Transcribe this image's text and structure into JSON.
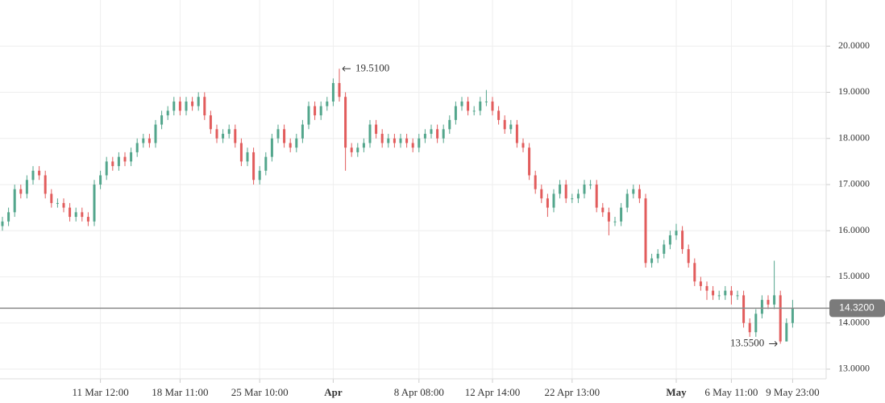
{
  "chart_data": {
    "type": "candlestick",
    "categories": [
      null,
      null,
      null,
      null,
      null,
      null,
      null,
      null,
      null,
      null,
      null,
      null,
      null,
      null,
      null,
      null,
      "11 Mar 12:00",
      null,
      null,
      null,
      null,
      null,
      null,
      null,
      null,
      null,
      null,
      null,
      null,
      "18 Mar 11:00",
      null,
      null,
      null,
      null,
      null,
      null,
      null,
      null,
      null,
      null,
      null,
      null,
      "25 Mar 10:00",
      null,
      null,
      null,
      null,
      null,
      null,
      null,
      null,
      null,
      null,
      null,
      "Apr",
      null,
      null,
      null,
      null,
      null,
      null,
      null,
      null,
      null,
      null,
      null,
      null,
      null,
      "8 Apr 08:00",
      null,
      null,
      null,
      null,
      null,
      null,
      null,
      null,
      null,
      null,
      null,
      "12 Apr 14:00",
      null,
      null,
      null,
      null,
      null,
      null,
      null,
      null,
      null,
      null,
      null,
      null,
      "22 Apr 13:00",
      null,
      null,
      null,
      null,
      null,
      null,
      null,
      null,
      null,
      null,
      null,
      null,
      null,
      null,
      null,
      null,
      "May",
      null,
      null,
      null,
      null,
      null,
      null,
      null,
      null,
      "6 May 11:00",
      null,
      null,
      null,
      null,
      null,
      null,
      null,
      null,
      null,
      "9 May 23:00"
    ],
    "bold_categories": [
      "Apr",
      "May"
    ],
    "open": [
      16.1,
      16.2,
      16.4,
      16.9,
      16.8,
      17.1,
      17.3,
      17.2,
      16.8,
      16.6,
      16.6,
      16.5,
      16.3,
      16.4,
      16.3,
      16.2,
      17.0,
      17.2,
      17.5,
      17.4,
      17.6,
      17.5,
      17.7,
      17.9,
      18.0,
      17.9,
      18.3,
      18.5,
      18.6,
      18.8,
      18.6,
      18.8,
      18.7,
      18.9,
      18.5,
      18.2,
      18.0,
      18.1,
      18.2,
      17.9,
      17.5,
      17.7,
      17.1,
      17.3,
      17.6,
      18.0,
      18.2,
      17.9,
      17.8,
      18.0,
      18.3,
      18.7,
      18.5,
      18.7,
      18.8,
      19.2,
      18.9,
      17.8,
      17.7,
      17.8,
      17.9,
      18.3,
      18.1,
      17.9,
      18.0,
      17.9,
      18.0,
      17.9,
      17.8,
      18.0,
      18.1,
      18.2,
      18.0,
      18.2,
      18.4,
      18.7,
      18.8,
      18.6,
      18.6,
      18.8,
      18.8,
      18.6,
      18.4,
      18.2,
      18.3,
      17.9,
      17.8,
      17.2,
      16.9,
      16.7,
      16.5,
      16.8,
      17.0,
      16.7,
      16.7,
      16.8,
      17.0,
      17.0,
      16.5,
      16.4,
      16.2,
      16.2,
      16.5,
      16.8,
      16.9,
      16.7,
      15.3,
      15.4,
      15.5,
      15.7,
      15.9,
      16.0,
      15.6,
      15.3,
      14.9,
      14.8,
      14.7,
      14.6,
      14.6,
      14.7,
      14.6,
      14.6,
      14.0,
      13.8,
      14.2,
      14.5,
      14.4,
      14.6,
      13.6,
      14.0
    ],
    "high": [
      16.3,
      16.5,
      17.0,
      17.0,
      17.2,
      17.4,
      17.4,
      17.3,
      16.9,
      16.7,
      16.7,
      16.6,
      16.5,
      16.5,
      16.4,
      17.1,
      17.3,
      17.6,
      17.6,
      17.7,
      17.7,
      17.8,
      18.0,
      18.1,
      18.1,
      18.4,
      18.6,
      18.7,
      18.9,
      18.9,
      18.9,
      18.9,
      19.0,
      19.0,
      18.6,
      18.3,
      18.2,
      18.3,
      18.3,
      18.0,
      17.8,
      17.8,
      17.4,
      17.7,
      18.1,
      18.3,
      18.3,
      18.0,
      18.1,
      18.4,
      18.8,
      18.8,
      18.8,
      18.9,
      19.3,
      19.51,
      19.0,
      17.9,
      17.9,
      18.0,
      18.4,
      18.4,
      18.2,
      18.1,
      18.1,
      18.1,
      18.1,
      18.0,
      18.1,
      18.2,
      18.3,
      18.3,
      18.3,
      18.5,
      18.8,
      18.9,
      18.9,
      18.7,
      18.9,
      19.05,
      18.9,
      18.7,
      18.5,
      18.4,
      18.4,
      18.0,
      17.9,
      17.3,
      17.0,
      16.8,
      16.9,
      17.1,
      17.1,
      16.8,
      16.9,
      17.1,
      17.1,
      17.1,
      16.6,
      16.5,
      16.3,
      16.6,
      16.9,
      17.0,
      17.0,
      16.8,
      15.5,
      15.6,
      15.8,
      16.0,
      16.15,
      16.1,
      15.7,
      15.4,
      15.0,
      14.9,
      14.8,
      14.7,
      14.8,
      14.8,
      14.7,
      14.7,
      14.1,
      14.3,
      14.6,
      14.6,
      15.35,
      14.7,
      14.1,
      14.5
    ],
    "low": [
      16.0,
      16.1,
      16.3,
      16.7,
      16.7,
      17.0,
      17.1,
      16.7,
      16.5,
      16.5,
      16.4,
      16.2,
      16.2,
      16.2,
      16.1,
      16.1,
      16.9,
      17.1,
      17.3,
      17.3,
      17.4,
      17.4,
      17.6,
      17.8,
      17.8,
      17.8,
      18.2,
      18.4,
      18.5,
      18.5,
      18.5,
      18.6,
      18.6,
      18.4,
      18.1,
      17.9,
      17.9,
      18.0,
      17.8,
      17.4,
      17.4,
      17.0,
      17.0,
      17.2,
      17.5,
      17.9,
      17.8,
      17.7,
      17.7,
      17.9,
      18.2,
      18.4,
      18.4,
      18.6,
      18.7,
      18.8,
      17.3,
      17.6,
      17.6,
      17.7,
      17.8,
      18.0,
      17.8,
      17.8,
      17.8,
      17.8,
      17.8,
      17.7,
      17.7,
      17.9,
      18.0,
      17.9,
      17.9,
      18.1,
      18.3,
      18.6,
      18.5,
      18.5,
      18.5,
      18.7,
      18.5,
      18.3,
      18.1,
      18.1,
      17.8,
      17.7,
      17.1,
      16.8,
      16.6,
      16.3,
      16.4,
      16.7,
      16.6,
      16.6,
      16.6,
      16.7,
      16.9,
      16.4,
      16.3,
      15.9,
      16.1,
      16.1,
      16.4,
      16.7,
      16.6,
      15.2,
      15.2,
      15.3,
      15.4,
      15.6,
      15.8,
      15.5,
      15.2,
      14.8,
      14.7,
      14.5,
      14.5,
      14.5,
      14.5,
      14.4,
      14.5,
      13.9,
      13.7,
      13.7,
      14.1,
      14.3,
      14.3,
      13.55,
      13.6,
      13.9
    ],
    "close": [
      16.2,
      16.4,
      16.9,
      16.8,
      17.1,
      17.3,
      17.2,
      16.8,
      16.6,
      16.6,
      16.5,
      16.3,
      16.4,
      16.3,
      16.2,
      17.0,
      17.2,
      17.5,
      17.4,
      17.6,
      17.5,
      17.7,
      17.9,
      18.0,
      17.9,
      18.3,
      18.5,
      18.6,
      18.8,
      18.6,
      18.8,
      18.7,
      18.9,
      18.5,
      18.2,
      18.0,
      18.1,
      18.2,
      17.9,
      17.5,
      17.7,
      17.1,
      17.3,
      17.6,
      18.0,
      18.2,
      17.9,
      17.8,
      18.0,
      18.3,
      18.7,
      18.5,
      18.7,
      18.8,
      19.2,
      18.9,
      17.8,
      17.7,
      17.8,
      17.9,
      18.3,
      18.1,
      17.9,
      18.0,
      17.9,
      18.0,
      17.9,
      17.8,
      18.0,
      18.1,
      18.2,
      18.0,
      18.2,
      18.4,
      18.7,
      18.8,
      18.6,
      18.6,
      18.8,
      18.8,
      18.6,
      18.4,
      18.2,
      18.3,
      17.9,
      17.8,
      17.2,
      16.9,
      16.7,
      16.5,
      16.8,
      17.0,
      16.7,
      16.7,
      16.8,
      17.0,
      17.0,
      16.5,
      16.4,
      16.2,
      16.2,
      16.5,
      16.8,
      16.9,
      16.7,
      15.3,
      15.4,
      15.5,
      15.7,
      15.9,
      16.0,
      15.6,
      15.3,
      14.9,
      14.8,
      14.7,
      14.6,
      14.6,
      14.7,
      14.6,
      14.6,
      14.0,
      13.8,
      14.2,
      14.5,
      14.4,
      14.6,
      13.6,
      14.0,
      14.32
    ],
    "up_color": "#53a68c",
    "down_color": "#e25c5c",
    "ylim": [
      12.79,
      21.0
    ],
    "yticks": [
      {
        "value": 13,
        "label": "13.0000"
      },
      {
        "value": 14,
        "label": "14.0000"
      },
      {
        "value": 15,
        "label": "15.0000"
      },
      {
        "value": 16,
        "label": "16.0000"
      },
      {
        "value": 17,
        "label": "17.0000"
      },
      {
        "value": 18,
        "label": "18.0000"
      },
      {
        "value": 19,
        "label": "19.0000"
      },
      {
        "value": 20,
        "label": "20.0000"
      }
    ],
    "grid": true,
    "last_price": {
      "value": 14.32,
      "label": "14.3200"
    },
    "high_marker": {
      "value": 19.51,
      "label": "19.5100"
    },
    "low_marker": {
      "value": 13.55,
      "label": "13.5500"
    }
  }
}
